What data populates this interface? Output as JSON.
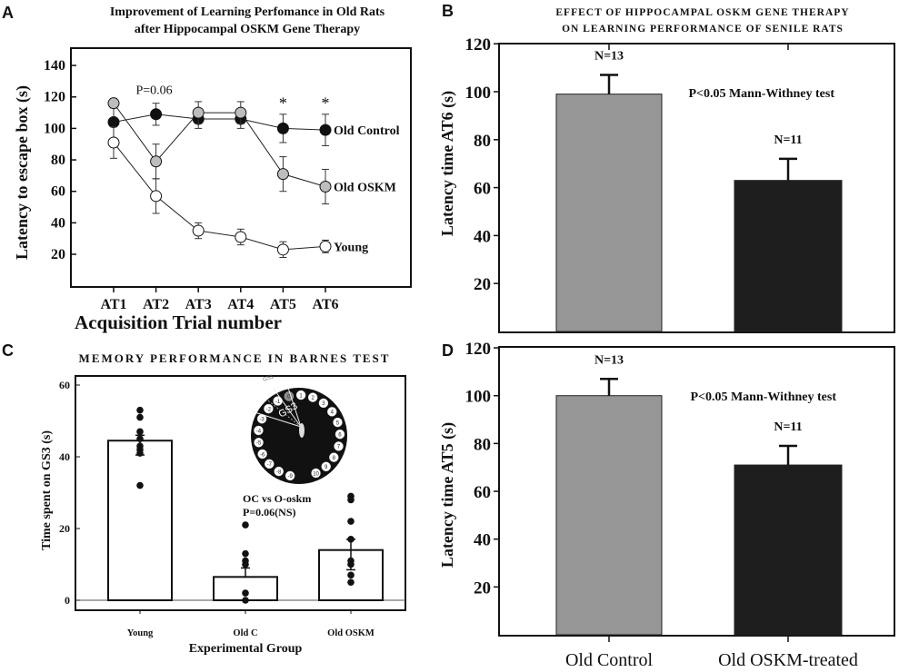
{
  "panels": {
    "A": {
      "letter": "A"
    },
    "B": {
      "letter": "B"
    },
    "C": {
      "letter": "C"
    },
    "D": {
      "letter": "D"
    }
  },
  "chart_data": [
    {
      "id": "A",
      "type": "line",
      "title": [
        "Improvement of Learning Perfomance in Old Rats",
        "after Hippocampal OSKM Gene Therapy"
      ],
      "xlabel": "Acquisition Trial number",
      "ylabel": "Latency to escape box (s)",
      "categories": [
        "AT1",
        "AT2",
        "AT3",
        "AT4",
        "AT5",
        "AT6"
      ],
      "yticks": [
        20,
        40,
        60,
        80,
        100,
        120,
        140
      ],
      "ylim": [
        0,
        145
      ],
      "series": [
        {
          "name": "Old Control",
          "marker_color": "#111111",
          "values": [
            104,
            109,
            106,
            106,
            100,
            99
          ],
          "err": [
            12,
            7,
            6,
            6,
            9,
            10
          ]
        },
        {
          "name": "Old OSKM",
          "marker_color": "#bdbdbd",
          "values": [
            116,
            79,
            110,
            110,
            71,
            63
          ],
          "err": [
            3,
            11,
            7,
            7,
            11,
            11
          ]
        },
        {
          "name": "Young",
          "marker_color": "#ffffff",
          "values": [
            91,
            57,
            35,
            31,
            23,
            25
          ],
          "err": [
            10,
            11,
            5,
            5,
            5,
            4
          ]
        }
      ],
      "annotations": [
        {
          "text": "P=0.06",
          "category": "AT2"
        },
        {
          "text": "*",
          "category": "AT5"
        },
        {
          "text": "*",
          "category": "AT6"
        }
      ]
    },
    {
      "id": "B",
      "type": "bar",
      "title": [
        "EFFECT OF HIPPOCAMPAL OSKM GENE THERAPY",
        "ON LEARNING PERFORMANCE OF SENILE RATS"
      ],
      "ylabel": "Latency time AT6 (s)",
      "categories": [
        "Old Control",
        "Old OSKM-treated"
      ],
      "values": [
        99,
        63
      ],
      "err_upper": [
        107,
        72
      ],
      "bar_colors": [
        "#969696",
        "#1e1e1e"
      ],
      "labels": [
        "N=13",
        "N=11"
      ],
      "annotation": "P<0.05 Mann-Withney test",
      "yticks": [
        20,
        40,
        60,
        80,
        100,
        120
      ],
      "ylim": [
        0,
        120
      ]
    },
    {
      "id": "C",
      "type": "bar",
      "title": "MEMORY PERFORMANCE IN BARNES TEST",
      "xlabel": "Experimental Group",
      "ylabel": "Time spent on GS3 (s)",
      "categories": [
        "Young",
        "Old C",
        "Old OSKM"
      ],
      "values": [
        44.5,
        6.5,
        14
      ],
      "err": [
        [
          40.5,
          46
        ],
        [
          6.5,
          9
        ],
        [
          8.5,
          17
        ]
      ],
      "points": [
        [
          53,
          51,
          47,
          45,
          43,
          42,
          41,
          32
        ],
        [
          21,
          13,
          11,
          10,
          2,
          0
        ],
        [
          29,
          28,
          22,
          17,
          11,
          10,
          7,
          5
        ]
      ],
      "annotation": [
        "OC vs O-oskm",
        "P=0.06(NS)"
      ],
      "yticks": [
        0,
        20,
        40,
        60
      ],
      "ylim": [
        -3,
        62
      ],
      "inset": {
        "labels": [
          "GS1",
          "GS3"
        ],
        "holes": [
          "-9",
          "-8",
          "-7",
          "-6",
          "-5",
          "-4",
          "-3",
          "-2",
          "-1",
          "0",
          "1",
          "2",
          "3",
          "4",
          "5",
          "6",
          "7",
          "8",
          "9",
          "10"
        ]
      }
    },
    {
      "id": "D",
      "type": "bar",
      "ylabel": "Latency time AT5 (s)",
      "categories": [
        "Old Control",
        "Old OSKM-treated"
      ],
      "values": [
        100,
        71
      ],
      "err_upper": [
        107,
        79
      ],
      "bar_colors": [
        "#969696",
        "#1e1e1e"
      ],
      "labels": [
        "N=13",
        "N=11"
      ],
      "annotation": "P<0.05 Mann-Withney test",
      "yticks": [
        20,
        40,
        60,
        80,
        100,
        120
      ],
      "ylim": [
        0,
        120
      ]
    }
  ]
}
